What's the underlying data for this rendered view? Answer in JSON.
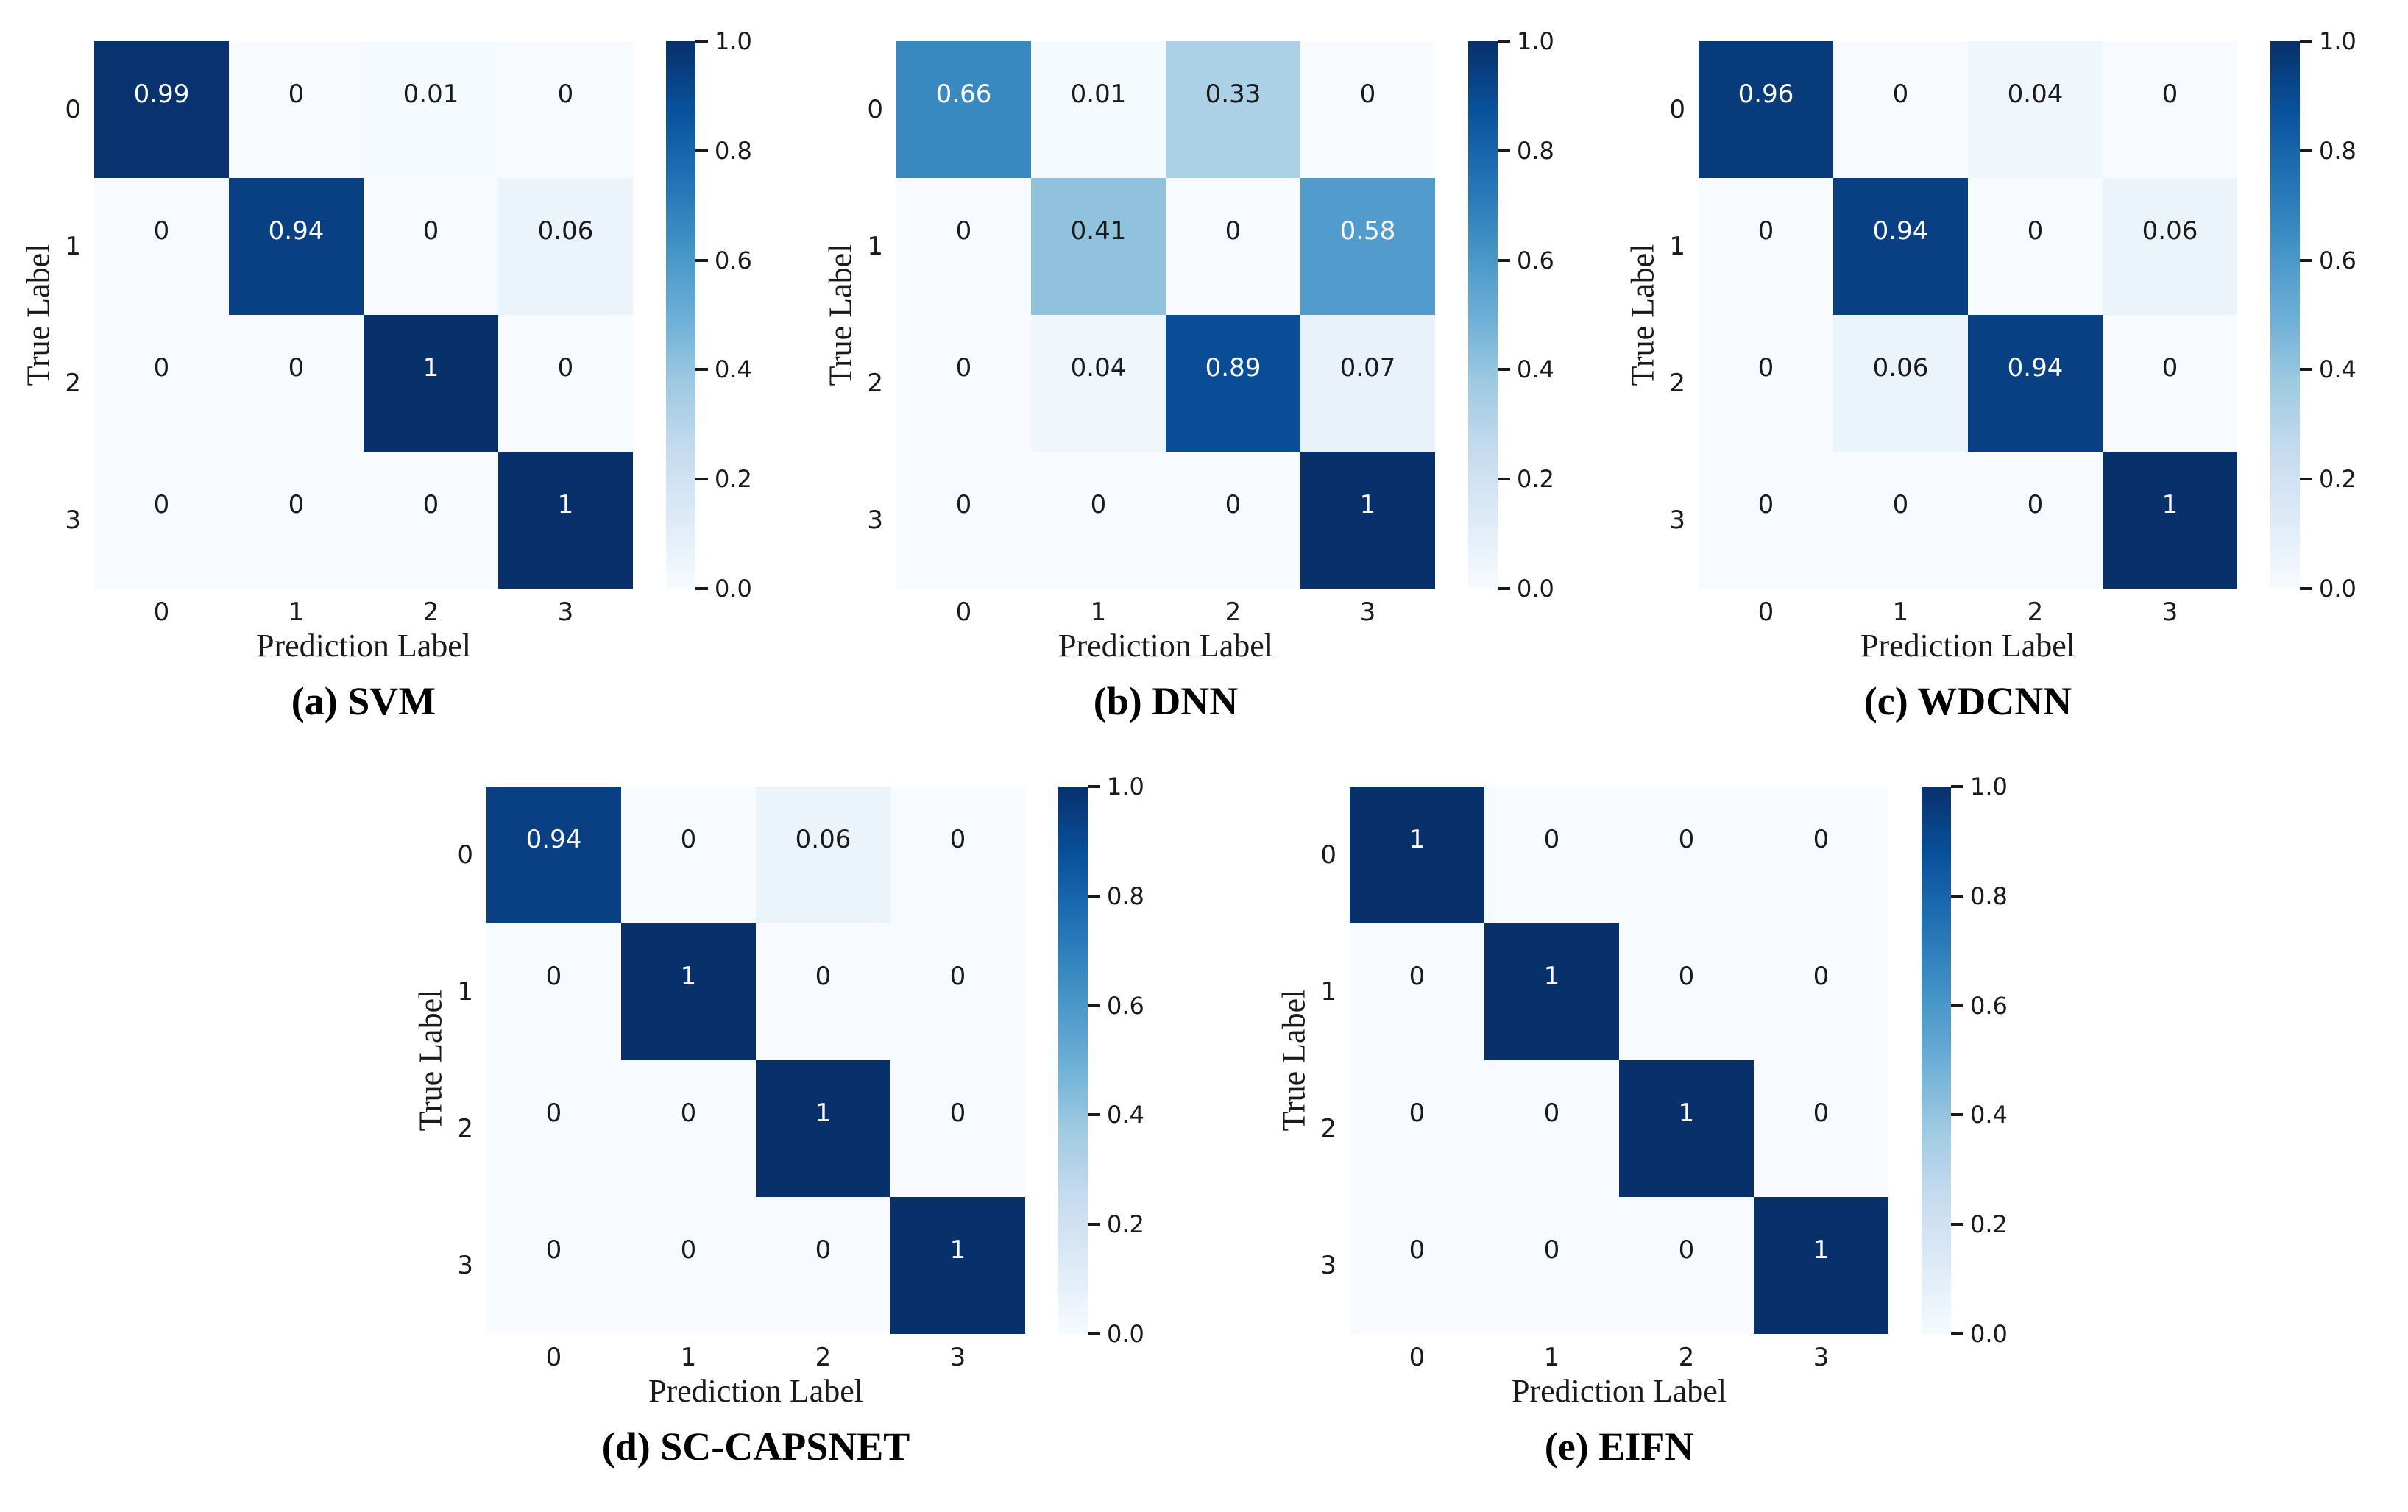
{
  "colors": {
    "background": "#ffffff",
    "tick_text": "#1a1a1a",
    "cell_text_dark": "#1a1a1a",
    "cell_text_light": "#ffffff",
    "colormap_min": "#f7fbff",
    "colormap_max": "#08306b",
    "colormap_stops": [
      "#f7fbff",
      "#deebf7",
      "#c6dbef",
      "#9ecae1",
      "#6baed6",
      "#4292c6",
      "#2171b5",
      "#08519c",
      "#08306b"
    ]
  },
  "axes": {
    "xlabel": "Prediction Label",
    "ylabel": "True Label",
    "x_ticks": [
      "0",
      "1",
      "2",
      "3"
    ],
    "y_ticks": [
      "0",
      "1",
      "2",
      "3"
    ],
    "colorbar_ticks": [
      "1.0",
      "0.8",
      "0.6",
      "0.4",
      "0.2",
      "0.0"
    ]
  },
  "chart_data": [
    {
      "type": "heatmap",
      "caption": "(a) SVM",
      "xlabel": "Prediction Label",
      "ylabel": "True Label",
      "x": [
        "0",
        "1",
        "2",
        "3"
      ],
      "y": [
        "0",
        "1",
        "2",
        "3"
      ],
      "vmin": 0,
      "vmax": 1,
      "colormap": "Blues",
      "legend_position": "right-colorbar",
      "rows": [
        [
          0.99,
          0,
          0.01,
          0
        ],
        [
          0,
          0.94,
          0,
          0.06
        ],
        [
          0,
          0,
          1,
          0
        ],
        [
          0,
          0,
          0,
          1
        ]
      ]
    },
    {
      "type": "heatmap",
      "caption": "(b) DNN",
      "xlabel": "Prediction Label",
      "ylabel": "True Label",
      "x": [
        "0",
        "1",
        "2",
        "3"
      ],
      "y": [
        "0",
        "1",
        "2",
        "3"
      ],
      "vmin": 0,
      "vmax": 1,
      "colormap": "Blues",
      "legend_position": "right-colorbar",
      "rows": [
        [
          0.66,
          0.01,
          0.33,
          0
        ],
        [
          0,
          0.41,
          0,
          0.58
        ],
        [
          0,
          0.04,
          0.89,
          0.07
        ],
        [
          0,
          0,
          0,
          1
        ]
      ]
    },
    {
      "type": "heatmap",
      "caption": "(c) WDCNN",
      "xlabel": "Prediction Label",
      "ylabel": "True Label",
      "x": [
        "0",
        "1",
        "2",
        "3"
      ],
      "y": [
        "0",
        "1",
        "2",
        "3"
      ],
      "vmin": 0,
      "vmax": 1,
      "colormap": "Blues",
      "legend_position": "right-colorbar",
      "rows": [
        [
          0.96,
          0,
          0.04,
          0
        ],
        [
          0,
          0.94,
          0,
          0.06
        ],
        [
          0,
          0.06,
          0.94,
          0
        ],
        [
          0,
          0,
          0,
          1
        ]
      ]
    },
    {
      "type": "heatmap",
      "caption": "(d) SC-CAPSNET",
      "xlabel": "Prediction Label",
      "ylabel": "True Label",
      "x": [
        "0",
        "1",
        "2",
        "3"
      ],
      "y": [
        "0",
        "1",
        "2",
        "3"
      ],
      "vmin": 0,
      "vmax": 1,
      "colormap": "Blues",
      "legend_position": "right-colorbar",
      "rows": [
        [
          0.94,
          0,
          0.06,
          0
        ],
        [
          0,
          1,
          0,
          0
        ],
        [
          0,
          0,
          1,
          0
        ],
        [
          0,
          0,
          0,
          1
        ]
      ]
    },
    {
      "type": "heatmap",
      "caption": "(e) EIFN",
      "xlabel": "Prediction Label",
      "ylabel": "True Label",
      "x": [
        "0",
        "1",
        "2",
        "3"
      ],
      "y": [
        "0",
        "1",
        "2",
        "3"
      ],
      "vmin": 0,
      "vmax": 1,
      "colormap": "Blues",
      "legend_position": "right-colorbar",
      "rows": [
        [
          1,
          0,
          0,
          0
        ],
        [
          0,
          1,
          0,
          0
        ],
        [
          0,
          0,
          1,
          0
        ],
        [
          0,
          0,
          0,
          1
        ]
      ]
    }
  ]
}
